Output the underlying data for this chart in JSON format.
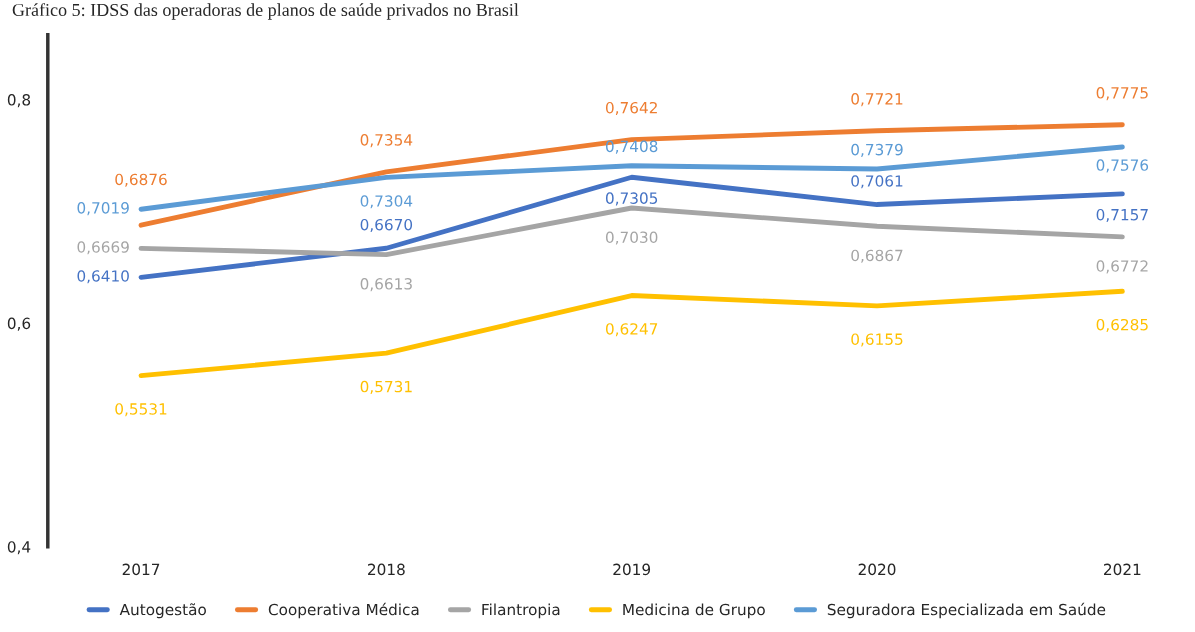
{
  "chart_data": {
    "type": "line",
    "title": "Gráfico 5: IDSS das operadoras de planos de saúde privados no Brasil",
    "categories": [
      "2017",
      "2018",
      "2019",
      "2020",
      "2021"
    ],
    "series": [
      {
        "name": "Autogestão",
        "color": "#4472c4",
        "values": [
          0.641,
          0.667,
          0.7305,
          0.7061,
          0.7157
        ],
        "value_labels": [
          "0,6410",
          "0,6670",
          "0,7305",
          "0,7061",
          "0,7157"
        ]
      },
      {
        "name": "Cooperativa Médica",
        "color": "#ed7d31",
        "values": [
          0.6876,
          0.7354,
          0.7642,
          0.7721,
          0.7775
        ],
        "value_labels": [
          "0,6876",
          "0,7354",
          "0,7642",
          "0,7721",
          "0,7775"
        ]
      },
      {
        "name": "Filantropia",
        "color": "#a5a5a5",
        "values": [
          0.6669,
          0.6613,
          0.703,
          0.6867,
          0.6772
        ],
        "value_labels": [
          "0,6669",
          "0,6613",
          "0,7030",
          "0,6867",
          "0,6772"
        ]
      },
      {
        "name": "Medicina de Grupo",
        "color": "#ffc000",
        "values": [
          0.5531,
          0.5731,
          0.6247,
          0.6155,
          0.6285
        ],
        "value_labels": [
          "0,5531",
          "0,5731",
          "0,6247",
          "0,6155",
          "0,6285"
        ]
      },
      {
        "name": "Seguradora Especializada em Saúde",
        "color": "#5b9bd5",
        "values": [
          0.7019,
          0.7304,
          0.7408,
          0.7379,
          0.7576
        ],
        "value_labels": [
          "0,7019",
          "0,7304",
          "0,7408",
          "0,7379",
          "0,7576"
        ]
      }
    ],
    "ylim": [
      0.4,
      0.858
    ],
    "yticks": [
      {
        "value": 0.4,
        "label": "0,4"
      },
      {
        "value": 0.6,
        "label": "0,6"
      },
      {
        "value": 0.8,
        "label": "0,8"
      }
    ],
    "grid": false,
    "legend": "bottom",
    "marker": "none",
    "line_style": "solid"
  }
}
